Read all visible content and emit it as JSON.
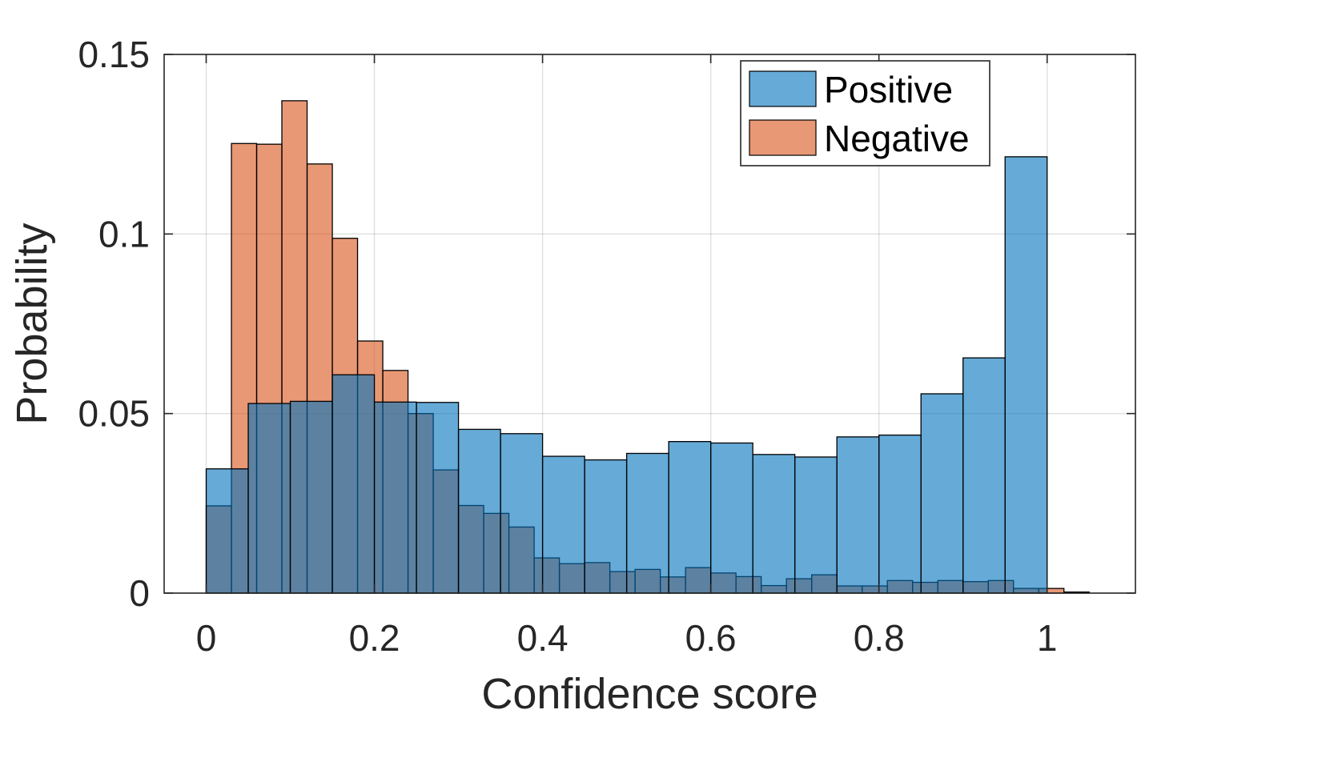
{
  "chart_data": {
    "type": "bar",
    "subtype": "overlaid-histogram",
    "title": "",
    "xlabel": "Confidence score",
    "ylabel": "Probability",
    "xlim": [
      -0.05,
      1.105
    ],
    "ylim": [
      0,
      0.15
    ],
    "xticks": [
      0,
      0.2,
      0.4,
      0.6,
      0.8,
      1
    ],
    "xtick_labels": [
      "0",
      "0.2",
      "0.4",
      "0.6",
      "0.8",
      "1"
    ],
    "yticks": [
      0,
      0.05,
      0.1,
      0.15
    ],
    "ytick_labels": [
      "0",
      "0.05",
      "0.1",
      "0.15"
    ],
    "grid": true,
    "legend_position": "top-right",
    "series": [
      {
        "name": "Positive",
        "color": "#0072BD",
        "bin_edges": [
          0,
          0.05,
          0.1,
          0.15,
          0.2,
          0.25,
          0.3,
          0.35,
          0.4,
          0.45,
          0.5,
          0.55,
          0.6,
          0.65,
          0.7,
          0.75,
          0.8,
          0.85,
          0.9,
          0.95,
          1.0
        ],
        "values": [
          0.0346,
          0.0528,
          0.0534,
          0.0608,
          0.0532,
          0.0531,
          0.0456,
          0.0444,
          0.0381,
          0.0371,
          0.0389,
          0.0422,
          0.0418,
          0.0386,
          0.0379,
          0.0435,
          0.044,
          0.0555,
          0.0655,
          0.1215
        ]
      },
      {
        "name": "Negative",
        "color": "#D95319",
        "bin_edges": [
          0,
          0.03,
          0.06,
          0.09,
          0.12,
          0.15,
          0.18,
          0.21,
          0.24,
          0.27,
          0.3,
          0.33,
          0.36,
          0.39,
          0.42,
          0.45,
          0.48,
          0.51,
          0.54,
          0.57,
          0.6,
          0.63,
          0.66,
          0.69,
          0.72,
          0.75,
          0.78,
          0.81,
          0.84,
          0.87,
          0.9,
          0.93,
          0.96,
          0.99,
          1.02,
          1.05
        ],
        "values": [
          0.0243,
          0.1252,
          0.125,
          0.1371,
          0.1195,
          0.0988,
          0.0702,
          0.062,
          0.05,
          0.0343,
          0.0244,
          0.0222,
          0.0184,
          0.0098,
          0.0082,
          0.0085,
          0.006,
          0.0066,
          0.0045,
          0.0071,
          0.0056,
          0.0046,
          0.0021,
          0.004,
          0.0051,
          0.002,
          0.002,
          0.0035,
          0.003,
          0.0035,
          0.0032,
          0.0035,
          0.0013,
          0.0013,
          0.0003
        ]
      }
    ]
  }
}
